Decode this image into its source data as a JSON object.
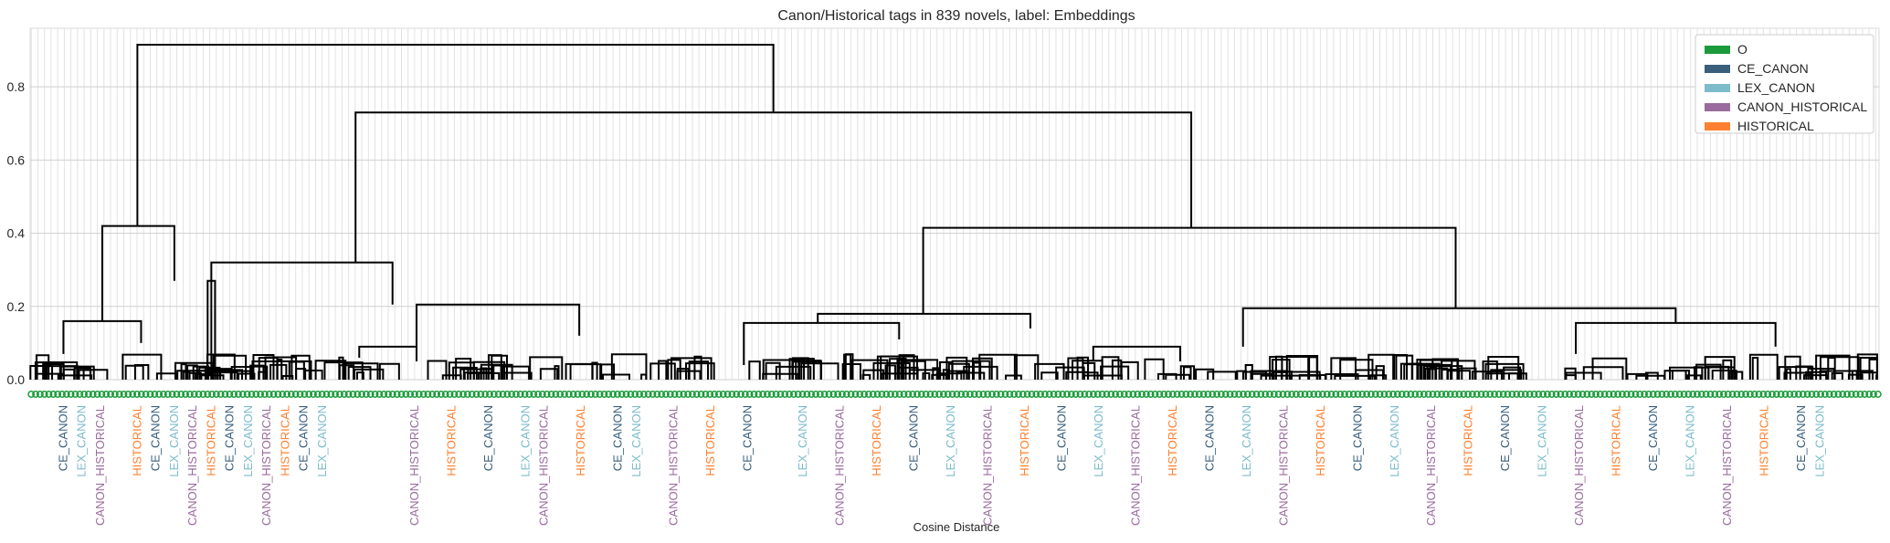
{
  "chart_data": {
    "type": "dendrogram",
    "title": "Canon/Historical tags in 839 novels, label: Embeddings",
    "xlabel": "Cosine Distance",
    "ylabel": "",
    "ylim": [
      0,
      0.96
    ],
    "yticks": [
      "0.0",
      "0.2",
      "0.4",
      "0.6",
      "0.8"
    ],
    "grid": true,
    "leaf_count": 839,
    "legend_position": "top-right",
    "legend": [
      {
        "name": "O",
        "color": "#1a9a3a"
      },
      {
        "name": "CE_CANON",
        "color": "#3a5f7d"
      },
      {
        "name": "LEX_CANON",
        "color": "#7cbccb"
      },
      {
        "name": "CANON_HISTORICAL",
        "color": "#9a6b9d"
      },
      {
        "name": "HISTORICAL",
        "color": "#ff8030"
      }
    ],
    "top_merges": [
      {
        "left_cluster_x": [
          0.0,
          0.1
        ],
        "height": 0.915
      },
      {
        "between": "main_clusters",
        "height": 0.73
      },
      {
        "between": "left_middle",
        "height": 0.42
      },
      {
        "between": "right_big",
        "height": 0.415
      },
      {
        "between": "middle_left",
        "height": 0.32
      },
      {
        "between": "middle_right",
        "height": 0.205
      },
      {
        "between": "right_inner",
        "height": 0.195
      }
    ],
    "leaf_labels": [
      {
        "text": "CE_CANON",
        "category": "CE_CANON"
      },
      {
        "text": "LEX_CANON",
        "category": "LEX_CANON"
      },
      {
        "text": "CANON_HISTORICAL",
        "category": "CANON_HISTORICAL"
      },
      {
        "text": "HISTORICAL",
        "category": "HISTORICAL"
      },
      {
        "text": "O",
        "category": "O"
      }
    ]
  }
}
